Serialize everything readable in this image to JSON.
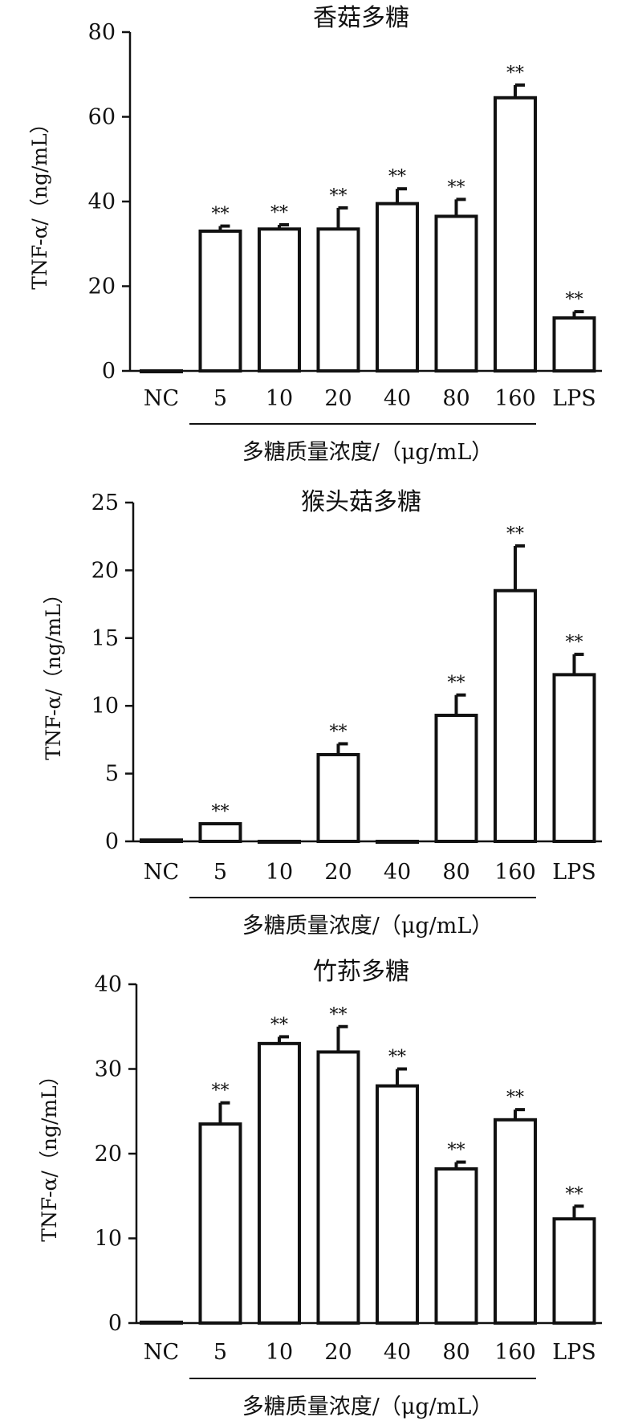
{
  "chart_data": [
    {
      "type": "bar",
      "title": "香菇多糖",
      "ylabel": "TNF-α/（ng/mL）",
      "xlabel": "多糖质量浓度/（μg/mL）",
      "categories": [
        "NC",
        "5",
        "10",
        "20",
        "40",
        "80",
        "160",
        "LPS"
      ],
      "values": [
        0,
        33,
        33.5,
        33.5,
        39.5,
        36.5,
        64.5,
        12.5
      ],
      "errors": [
        0,
        1.2,
        1.0,
        5.0,
        3.5,
        4.0,
        3.0,
        1.5
      ],
      "significance": [
        "",
        "**",
        "**",
        "**",
        "**",
        "**",
        "**",
        "**"
      ],
      "yticks": [
        "0",
        "20",
        "40",
        "60",
        "80"
      ],
      "ylim": [
        0,
        80
      ],
      "grid": false
    },
    {
      "type": "bar",
      "title": "猴头菇多糖",
      "ylabel": "TNF-α/（ng/mL）",
      "xlabel": "多糖质量浓度/（μg/mL）",
      "categories": [
        "NC",
        "5",
        "10",
        "20",
        "40",
        "80",
        "160",
        "LPS"
      ],
      "values": [
        0.1,
        1.3,
        0,
        6.4,
        0,
        9.3,
        18.5,
        12.3
      ],
      "errors": [
        0,
        0,
        0,
        0.8,
        0,
        1.5,
        3.3,
        1.5
      ],
      "significance": [
        "",
        "**",
        "",
        "**",
        "",
        "**",
        "**",
        "**"
      ],
      "yticks": [
        "0",
        "5",
        "10",
        "15",
        "20",
        "25"
      ],
      "ylim": [
        0,
        25
      ],
      "grid": false
    },
    {
      "type": "bar",
      "title": "竹荪多糖",
      "ylabel": "TNF-α/（ng/mL）",
      "xlabel": "多糖质量浓度/（μg/mL）",
      "categories": [
        "NC",
        "5",
        "10",
        "20",
        "40",
        "80",
        "160",
        "LPS"
      ],
      "values": [
        0.1,
        23.5,
        33,
        32,
        28,
        18.2,
        24,
        12.3
      ],
      "errors": [
        0,
        2.5,
        0.8,
        3.0,
        2.0,
        0.8,
        1.2,
        1.5
      ],
      "significance": [
        "",
        "**",
        "**",
        "**",
        "**",
        "**",
        "**",
        "**"
      ],
      "yticks": [
        "0",
        "10",
        "20",
        "30",
        "40"
      ],
      "ylim": [
        0,
        40
      ],
      "grid": false
    }
  ]
}
